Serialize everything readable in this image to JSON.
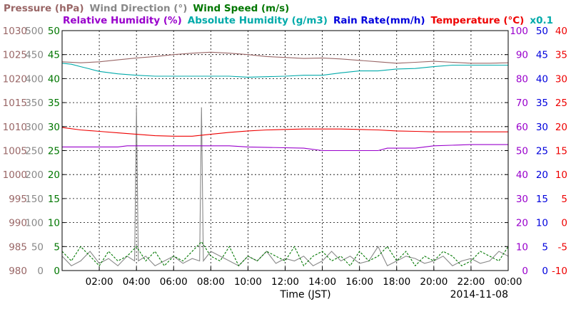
{
  "chart_data": {
    "type": "line",
    "legend_rows": [
      [
        {
          "label": "Pressure (hPa)",
          "color": "#996666"
        },
        {
          "label": "Wind Direction (°)",
          "color": "#888888"
        },
        {
          "label": "Wind Speed (m/s)",
          "color": "#007700"
        }
      ],
      [
        {
          "label": "Relative Humidity (%)",
          "color": "#9900cc"
        },
        {
          "label": "Absolute Humidity (g/m3)",
          "color": "#00aaaa"
        },
        {
          "label": "Rain Rate(mm/h)",
          "color": "#0000dd"
        },
        {
          "label": "Temperature (°C)",
          "color": "#ee0000"
        },
        {
          "label": "x0.1",
          "color": "#00aaaa"
        }
      ]
    ],
    "xlabel": "Time (JST)",
    "date_label": "2014-11-08",
    "x_range_hours": [
      0,
      24
    ],
    "x_ticks": [
      "02:00",
      "04:00",
      "06:00",
      "08:00",
      "10:00",
      "12:00",
      "14:00",
      "16:00",
      "18:00",
      "20:00",
      "22:00",
      "00:00"
    ],
    "axes": {
      "pressure": {
        "color": "#996666",
        "range": [
          980,
          1030
        ],
        "ticks": [
          "980",
          "985",
          "990",
          "995",
          "1000",
          "1005",
          "1010",
          "1015",
          "1020",
          "1025",
          "1030"
        ]
      },
      "wind_direction": {
        "color": "#888888",
        "range": [
          0,
          500
        ],
        "ticks": [
          "0",
          "50",
          "100",
          "150",
          "200",
          "250",
          "300",
          "350",
          "400",
          "450",
          "500"
        ]
      },
      "wind_speed": {
        "color": "#007700",
        "range": [
          0,
          50
        ],
        "ticks": [
          "0",
          "5",
          "10",
          "15",
          "20",
          "25",
          "30",
          "35",
          "40",
          "45",
          "50"
        ]
      },
      "relative_humidity": {
        "color": "#9900cc",
        "range": [
          0,
          100
        ],
        "ticks": [
          "0",
          "10",
          "20",
          "30",
          "40",
          "50",
          "60",
          "70",
          "80",
          "90",
          "100"
        ]
      },
      "rain_rate": {
        "color": "#0000dd",
        "range": [
          0,
          50
        ],
        "ticks": [
          "0",
          "5",
          "10",
          "15",
          "20",
          "25",
          "30",
          "35",
          "40",
          "45",
          "50"
        ]
      },
      "temperature": {
        "color": "#ee0000",
        "range": [
          -10,
          40
        ],
        "ticks": [
          "-10",
          "-5",
          "0",
          "5",
          "10",
          "15",
          "20",
          "25",
          "30",
          "35",
          "40"
        ]
      }
    },
    "series": [
      {
        "name": "Pressure (hPa)",
        "axis": "pressure",
        "color": "#996666",
        "x": [
          0,
          1,
          2,
          3,
          4,
          5,
          6,
          7,
          8,
          9,
          10,
          11,
          12,
          13,
          14,
          15,
          16,
          17,
          18,
          19,
          20,
          21,
          22,
          23,
          24
        ],
        "y": [
          1023.5,
          1023.3,
          1023.5,
          1023.9,
          1024.3,
          1024.6,
          1025.0,
          1025.3,
          1025.5,
          1025.3,
          1025.0,
          1024.6,
          1024.4,
          1024.2,
          1024.3,
          1024.1,
          1023.8,
          1023.5,
          1023.2,
          1023.4,
          1023.6,
          1023.4,
          1023.2,
          1023.2,
          1023.3
        ]
      },
      {
        "name": "Absolute Humidity (g/m3)",
        "axis": "wind_speed",
        "color": "#00aaaa",
        "x": [
          0,
          0.5,
          1,
          1.5,
          2,
          3,
          4,
          5,
          6,
          7,
          8,
          9,
          10,
          11,
          12,
          13,
          14,
          15,
          16,
          17,
          18,
          19,
          20,
          21,
          22,
          23,
          24
        ],
        "y": [
          43.2,
          43.0,
          42.5,
          42.0,
          41.5,
          41.0,
          40.7,
          40.5,
          40.5,
          40.5,
          40.5,
          40.5,
          40.3,
          40.4,
          40.5,
          40.7,
          40.7,
          41.2,
          41.6,
          41.6,
          42.0,
          42.1,
          42.5,
          42.8,
          42.8,
          42.8,
          42.8
        ]
      },
      {
        "name": "Temperature (°C)",
        "axis": "temperature",
        "color": "#ee0000",
        "x": [
          0,
          1,
          2,
          3,
          4,
          5,
          6,
          7,
          8,
          9,
          10,
          11,
          12,
          13,
          14,
          15,
          16,
          17,
          18,
          19,
          20,
          21,
          22,
          23,
          24
        ],
        "y": [
          19.8,
          19.3,
          19.0,
          18.7,
          18.4,
          18.1,
          18.0,
          18.0,
          18.4,
          18.8,
          19.1,
          19.3,
          19.4,
          19.5,
          19.5,
          19.5,
          19.4,
          19.3,
          19.1,
          19.0,
          18.9,
          18.9,
          18.9,
          18.9,
          18.9
        ]
      },
      {
        "name": "Relative Humidity (%)",
        "axis": "relative_humidity",
        "color": "#9900cc",
        "x": [
          0,
          3,
          3.5,
          9,
          10,
          13,
          14,
          17,
          17.5,
          19,
          20,
          22,
          24
        ],
        "y": [
          51.5,
          51.5,
          52.0,
          52.0,
          51.5,
          51.0,
          50.0,
          50.0,
          51.0,
          51.0,
          52.0,
          52.5,
          52.5
        ]
      },
      {
        "name": "Wind Speed (m/s)",
        "axis": "wind_speed",
        "color": "#007700",
        "x": [
          0,
          0.5,
          1,
          1.5,
          2,
          2.5,
          3,
          3.5,
          4,
          4.5,
          5,
          5.5,
          6,
          6.5,
          7,
          7.5,
          8,
          8.5,
          9,
          9.5,
          10,
          10.5,
          11,
          11.5,
          12,
          12.5,
          13,
          13.5,
          14,
          14.5,
          15,
          15.5,
          16,
          16.5,
          17,
          17.5,
          18,
          18.5,
          19,
          19.5,
          20,
          20.5,
          21,
          21.5,
          22,
          22.5,
          23,
          23.5,
          24
        ],
        "y": [
          4,
          2,
          5,
          3,
          1,
          4,
          2,
          3,
          5,
          2,
          4,
          1,
          3,
          2,
          4,
          6,
          3,
          2,
          5,
          1,
          3,
          2,
          4,
          3,
          2,
          5,
          1,
          3,
          4,
          2,
          3,
          1,
          4,
          2,
          3,
          5,
          2,
          4,
          1,
          3,
          2,
          4,
          3,
          1,
          2,
          4,
          3,
          2,
          5
        ]
      },
      {
        "name": "Wind Direction (°)",
        "axis": "wind_direction",
        "color": "#888888",
        "x": [
          0,
          0.5,
          1,
          1.5,
          2,
          2.5,
          3,
          3.5,
          3.9,
          4.0,
          4.1,
          4.5,
          5,
          5.5,
          6,
          6.5,
          7,
          7.4,
          7.5,
          7.6,
          8,
          8.5,
          9,
          9.5,
          10,
          10.5,
          11,
          11.5,
          12,
          12.5,
          13,
          13.5,
          14,
          14.5,
          15,
          15.5,
          16,
          16.5,
          17,
          17.5,
          18,
          18.5,
          19,
          19.5,
          20,
          20.5,
          21,
          21.5,
          22,
          22.5,
          23,
          23.5,
          24
        ],
        "y": [
          30,
          10,
          20,
          40,
          15,
          25,
          10,
          30,
          20,
          340,
          20,
          30,
          10,
          20,
          30,
          15,
          25,
          20,
          340,
          20,
          40,
          30,
          20,
          10,
          30,
          20,
          40,
          15,
          25,
          20,
          30,
          10,
          20,
          40,
          20,
          30,
          15,
          20,
          50,
          10,
          20,
          30,
          25,
          15,
          20,
          30,
          10,
          20,
          25,
          15,
          20,
          40,
          30
        ]
      },
      {
        "name": "Rain Rate(mm/h)",
        "axis": "rain_rate",
        "color": "#0000dd",
        "x": [
          0,
          24
        ],
        "y": [
          0,
          0
        ]
      }
    ],
    "grid": true,
    "legend_placement": "top"
  }
}
